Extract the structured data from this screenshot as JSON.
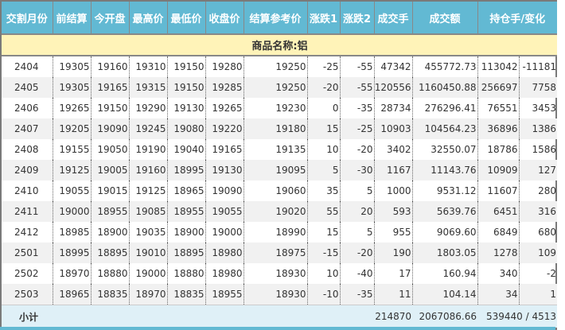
{
  "columns": [
    "交割月份",
    "前结算",
    "今开盘",
    "最高价",
    "最低价",
    "收盘价",
    "结算参考价",
    "涨跌1",
    "涨跌2",
    "成交手",
    "成交额",
    "持仓手/变化"
  ],
  "category_label": "商品名称:铝",
  "rows": [
    [
      "2404",
      "19305",
      "19160",
      "19310",
      "19150",
      "19280",
      "19250",
      "-25",
      "-55",
      "47342",
      "455772.73",
      "113042",
      "-11181"
    ],
    [
      "2405",
      "19305",
      "19165",
      "19315",
      "19150",
      "19285",
      "19250",
      "-20",
      "-55",
      "120556",
      "1160450.88",
      "256697",
      "7758"
    ],
    [
      "2406",
      "19265",
      "19150",
      "19290",
      "19130",
      "19265",
      "19230",
      "0",
      "-35",
      "28734",
      "276296.41",
      "76551",
      "3453"
    ],
    [
      "2407",
      "19205",
      "19090",
      "19245",
      "19080",
      "19220",
      "19180",
      "15",
      "-25",
      "10903",
      "104564.23",
      "36896",
      "1386"
    ],
    [
      "2408",
      "19155",
      "19050",
      "19190",
      "19040",
      "19165",
      "19135",
      "10",
      "-20",
      "3402",
      "32550.07",
      "18786",
      "1586"
    ],
    [
      "2409",
      "19125",
      "19005",
      "19160",
      "18995",
      "19130",
      "19095",
      "5",
      "-30",
      "1167",
      "11143.76",
      "10909",
      "127"
    ],
    [
      "2410",
      "19055",
      "19015",
      "19125",
      "18965",
      "19090",
      "19060",
      "35",
      "5",
      "1000",
      "9531.12",
      "11607",
      "280"
    ],
    [
      "2411",
      "19000",
      "18955",
      "19085",
      "18955",
      "19055",
      "19020",
      "55",
      "20",
      "593",
      "5639.76",
      "6451",
      "316"
    ],
    [
      "2412",
      "18985",
      "18900",
      "19035",
      "18900",
      "19000",
      "18990",
      "15",
      "5",
      "955",
      "9069.60",
      "6849",
      "680"
    ],
    [
      "2501",
      "18995",
      "18895",
      "19010",
      "18895",
      "18980",
      "18975",
      "-15",
      "-20",
      "190",
      "1803.05",
      "1278",
      "109"
    ],
    [
      "2502",
      "18970",
      "18880",
      "19000",
      "18880",
      "18980",
      "18930",
      "10",
      "-40",
      "17",
      "160.94",
      "340",
      "-2"
    ],
    [
      "2503",
      "18965",
      "18835",
      "18970",
      "18835",
      "18955",
      "18930",
      "-10",
      "-35",
      "11",
      "104.14",
      "34",
      "1"
    ]
  ],
  "subtotal": {
    "label": "小计",
    "volume": "214870",
    "turnover": "2067086.66",
    "open_interest": "539440 / 4513"
  },
  "colors": {
    "header": "#62b9d3",
    "category": "#fff3b8",
    "subtotal": "#dff0f7",
    "alt_row": "#f1f1f1"
  }
}
